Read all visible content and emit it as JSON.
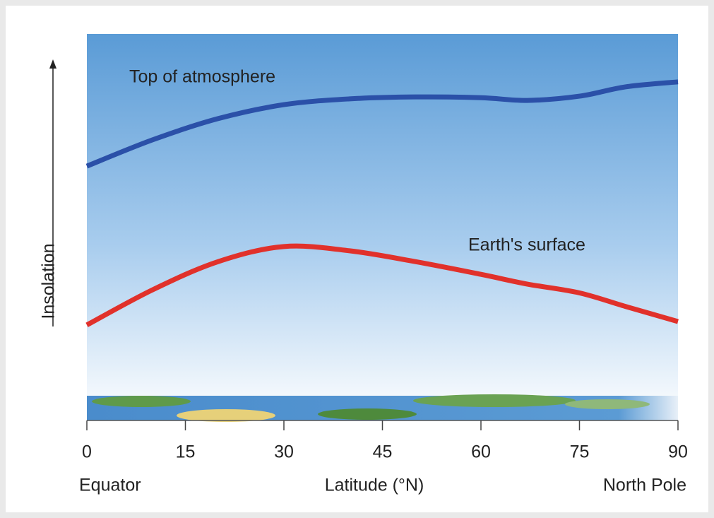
{
  "chart_data": {
    "type": "line",
    "x_label": "Latitude (°N)",
    "y_label": "Insolation",
    "x_start_label": "Equator",
    "x_end_label": "North Pole",
    "x": [
      0,
      10,
      20,
      30,
      40,
      50,
      60,
      67,
      75,
      82,
      90
    ],
    "series": [
      {
        "name": "Top of atmosphere",
        "color": "#2b50a8",
        "values": [
          65.8,
          72.6,
          78.1,
          81.7,
          83.2,
          83.7,
          83.5,
          82.8,
          83.9,
          86.3,
          87.6
        ]
      },
      {
        "name": "Earth's surface",
        "color": "#e1312b",
        "values": [
          24.7,
          33.8,
          41.1,
          45.0,
          43.9,
          41.1,
          37.8,
          35.3,
          33.0,
          29.5,
          25.6
        ]
      }
    ],
    "xlim": [
      0,
      90
    ],
    "xticks": [
      0,
      15,
      30,
      45,
      60,
      75,
      90
    ],
    "ylim": [
      0,
      100
    ]
  }
}
